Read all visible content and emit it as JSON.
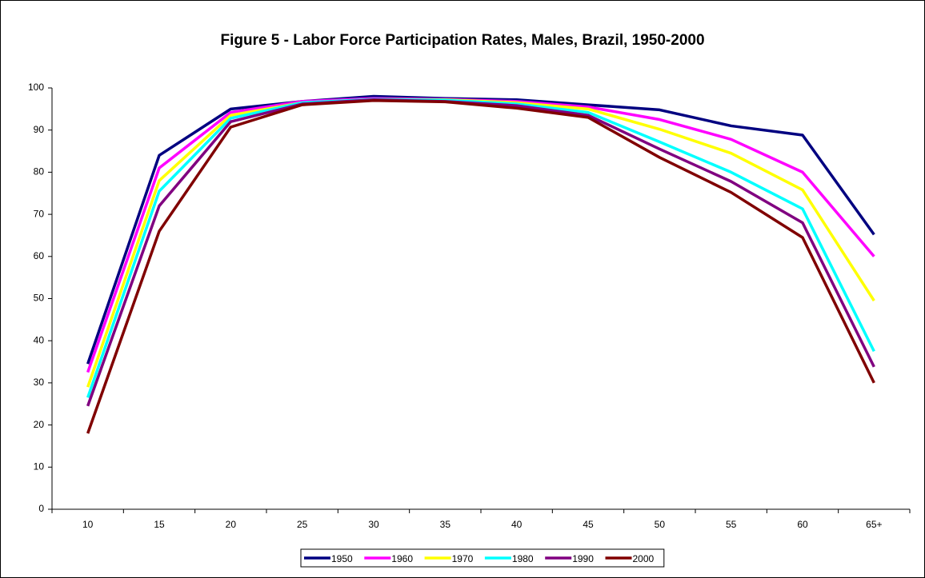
{
  "chart_data": {
    "type": "line",
    "title": "Figure 5 - Labor Force Participation Rates, Males, Brazil, 1950-2000",
    "categories": [
      "10",
      "15",
      "20",
      "25",
      "30",
      "35",
      "40",
      "45",
      "50",
      "55",
      "60",
      "65+"
    ],
    "ylim": [
      0,
      100
    ],
    "yticks": [
      0,
      10,
      20,
      30,
      40,
      50,
      60,
      70,
      80,
      90,
      100
    ],
    "grid": false,
    "legend": "bottom",
    "series": [
      {
        "name": "1950",
        "color": "#000080",
        "values": [
          34.5,
          84,
          95,
          96.8,
          98,
          97.5,
          97.2,
          96,
          94.8,
          91,
          88.8,
          65.2
        ]
      },
      {
        "name": "1960",
        "color": "#ff00ff",
        "values": [
          32.5,
          81,
          94.2,
          96.8,
          97.5,
          97.3,
          96.8,
          95.5,
          92.5,
          87.8,
          80,
          60
        ]
      },
      {
        "name": "1970",
        "color": "#ffff00",
        "values": [
          29,
          78,
          93.5,
          96.5,
          97.3,
          97.2,
          96.5,
          95,
          90.2,
          84.5,
          75.8,
          49.5
        ]
      },
      {
        "name": "1980",
        "color": "#00ffff",
        "values": [
          26.5,
          75.5,
          92.8,
          96.5,
          97.3,
          97.1,
          96.2,
          94.2,
          87.2,
          80,
          71.3,
          37.5
        ]
      },
      {
        "name": "1990",
        "color": "#800080",
        "values": [
          24.5,
          72,
          92,
          96.2,
          97.2,
          96.8,
          95.8,
          93.5,
          85.5,
          77.8,
          68,
          33.8
        ]
      },
      {
        "name": "2000",
        "color": "#800000",
        "values": [
          18,
          66,
          90.7,
          96,
          97,
          96.7,
          95.2,
          93,
          83.5,
          75.2,
          64.5,
          30
        ]
      }
    ]
  }
}
